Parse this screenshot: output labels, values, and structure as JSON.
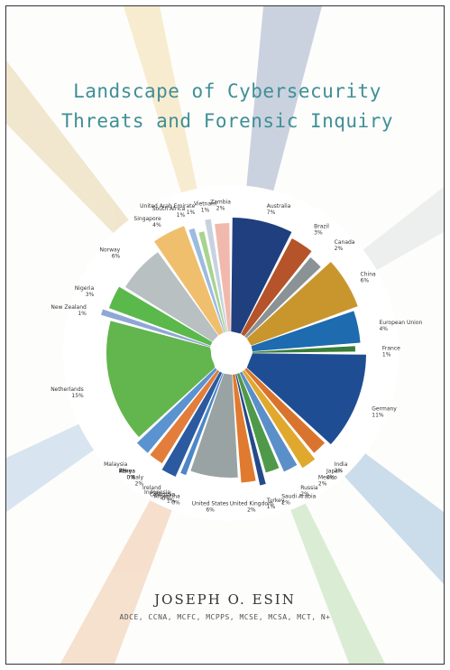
{
  "chart_data": {
    "type": "pie",
    "title": "Landscape of Cybersecurity Threats and Forensic Inquiry",
    "author": "JOSEPH O. ESIN",
    "credentials": "ADCE, CCNA, MCFC, MCPPS, MCSE, MCSA, MCT, N+",
    "categories": [
      "Australia",
      "Brazil",
      "Canada",
      "China",
      "European Union",
      "France",
      "Germany",
      "India",
      "Japan",
      "Mexico",
      "Russia",
      "Saudi Arabia",
      "Turkey",
      "United Kingdom",
      "United States",
      "Argentina",
      "Columbia",
      "Indonesia",
      "Ireland",
      "Italy",
      "Kenya",
      "Korea",
      "Malaysia",
      "Netherlands",
      "New Zealand",
      "Nigeria",
      "Norway",
      "Singapore",
      "South Africa",
      "United Arab Emirate",
      "Vietnam",
      "Zambia"
    ],
    "values": [
      7,
      3,
      2,
      6,
      4,
      1,
      11,
      2,
      0,
      2,
      2,
      2,
      1,
      2,
      6,
      0,
      1,
      0,
      2,
      2,
      0,
      0,
      2,
      15,
      1,
      3,
      6,
      4,
      1,
      1,
      1,
      2
    ],
    "value_labels": [
      "7%",
      "3%",
      "2%",
      "6%",
      "4%",
      "1%",
      "11%",
      "2%",
      "0%",
      "2%",
      "2%",
      "2%",
      "1%",
      "2%",
      "6%",
      "0%",
      "1%",
      "0%",
      "2%",
      "2%",
      "0%",
      "0%",
      "2%",
      "15%",
      "1%",
      "3%",
      "6%",
      "4%",
      "1%",
      "1%",
      "1%",
      "2%"
    ],
    "colors": [
      "#1f3f7f",
      "#b5532a",
      "#8a9296",
      "#c9962e",
      "#1e6bb0",
      "#3a7d3a",
      "#1f4d93",
      "#d9742e",
      "#9aa3a8",
      "#e0a92e",
      "#5b8fc9",
      "#4f9a4a",
      "#254a8a",
      "#e07a2e",
      "#9aa3a3",
      "#e3a83a",
      "#4d87c7",
      "#4ea14f",
      "#2b5aa0",
      "#e27d3b",
      "#a0a6aa",
      "#e9b23b",
      "#5a93cf",
      "#63b54d",
      "#8fa7d4",
      "#5bb84b",
      "#b8c0c2",
      "#f0bf6e",
      "#9bbbe0",
      "#a7d48e",
      "#c7d2e0",
      "#f1b9ad"
    ]
  }
}
